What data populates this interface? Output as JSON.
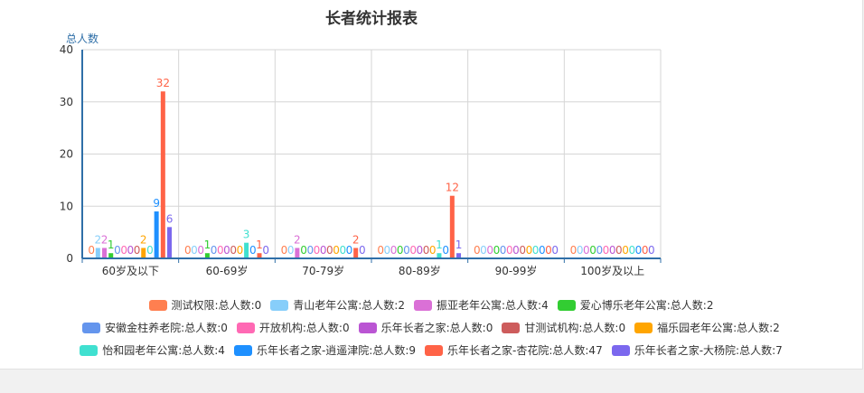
{
  "chart_data": {
    "type": "bar",
    "title": "长者统计报表",
    "ylabel": "总人数",
    "xlabel": "",
    "ylim": [
      0,
      40
    ],
    "yticks": [
      0,
      10,
      20,
      30,
      40
    ],
    "grid": true,
    "legend_position": "bottom",
    "categories": [
      "60岁及以下",
      "60-69岁",
      "70-79岁",
      "80-89岁",
      "90-99岁",
      "100岁及以上"
    ],
    "series": [
      {
        "name": "测试权限:总人数:0",
        "color": "#ff7f50",
        "values": [
          0,
          0,
          0,
          0,
          0,
          0
        ]
      },
      {
        "name": "青山老年公寓:总人数:2",
        "color": "#87cefa",
        "values": [
          2,
          0,
          0,
          0,
          0,
          0
        ]
      },
      {
        "name": "振亚老年公寓:总人数:4",
        "color": "#da70d6",
        "values": [
          2,
          0,
          2,
          0,
          0,
          0
        ]
      },
      {
        "name": "爱心博乐老年公寓:总人数:2",
        "color": "#32cd32",
        "values": [
          1,
          1,
          0,
          0,
          0,
          0
        ]
      },
      {
        "name": "安徽金柱养老院:总人数:0",
        "color": "#6495ed",
        "values": [
          0,
          0,
          0,
          0,
          0,
          0
        ]
      },
      {
        "name": "开放机构:总人数:0",
        "color": "#ff69b4",
        "values": [
          0,
          0,
          0,
          0,
          0,
          0
        ]
      },
      {
        "name": "乐年长者之家:总人数:0",
        "color": "#ba55d3",
        "values": [
          0,
          0,
          0,
          0,
          0,
          0
        ]
      },
      {
        "name": "甘测试机构:总人数:0",
        "color": "#cd5c5c",
        "values": [
          0,
          0,
          0,
          0,
          0,
          0
        ]
      },
      {
        "name": "福乐园老年公寓:总人数:2",
        "color": "#ffa500",
        "values": [
          2,
          0,
          0,
          0,
          0,
          0
        ]
      },
      {
        "name": "怡和园老年公寓:总人数:4",
        "color": "#40e0d0",
        "values": [
          0,
          3,
          0,
          1,
          0,
          0
        ]
      },
      {
        "name": "乐年长者之家-逍遥津院:总人数:9",
        "color": "#1e90ff",
        "values": [
          9,
          0,
          0,
          0,
          0,
          0
        ]
      },
      {
        "name": "乐年长者之家-杏花院:总人数:47",
        "color": "#ff6347",
        "values": [
          32,
          1,
          2,
          12,
          0,
          0
        ]
      },
      {
        "name": "乐年长者之家-大杨院:总人数:7",
        "color": "#7b68ee",
        "values": [
          6,
          0,
          0,
          1,
          0,
          0
        ]
      }
    ]
  }
}
